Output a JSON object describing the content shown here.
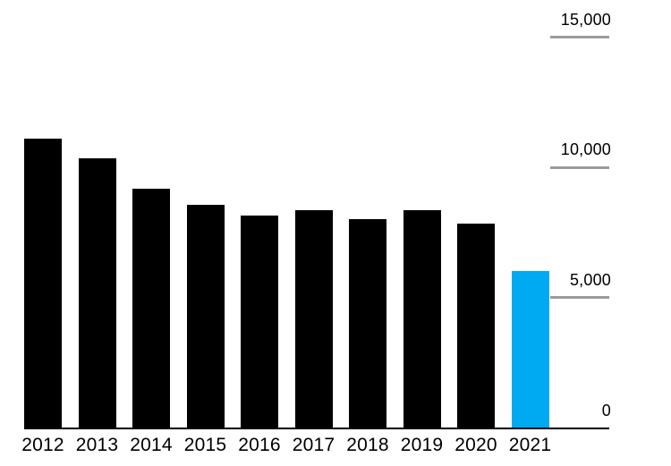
{
  "chart_data": {
    "type": "bar",
    "title": "",
    "xlabel": "",
    "ylabel": "",
    "categories": [
      "2012",
      "2013",
      "2014",
      "2015",
      "2016",
      "2017",
      "2018",
      "2019",
      "2020",
      "2021"
    ],
    "values": [
      11100,
      10350,
      9190,
      8570,
      8140,
      8370,
      8020,
      8370,
      7830,
      6030
    ],
    "ylim": [
      0,
      15000
    ],
    "yticks": [
      0,
      5000,
      10000,
      15000
    ],
    "ytick_labels": [
      "0",
      "5,000",
      "10,000",
      "15,000"
    ],
    "axis_side": "right",
    "grid": "horizontal tick segments on right side only",
    "legend": "none",
    "bar_color": "#000000",
    "highlight_index": 9,
    "highlight_color": "#00aaf2",
    "gridline_color": "#9b9b9b",
    "baseline_color": "#000000",
    "text_color": "#000000",
    "background_color": "#ffffff"
  }
}
